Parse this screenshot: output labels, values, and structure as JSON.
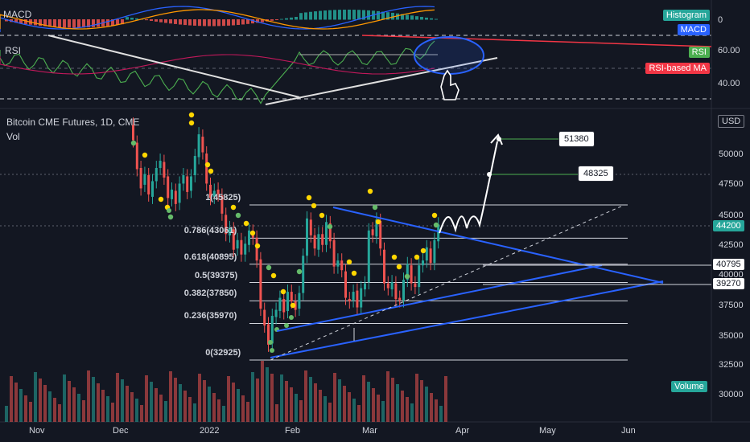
{
  "macd_panel": {
    "title": "MACD",
    "legend": [
      {
        "label": "Histogram",
        "color": "#26a69a"
      },
      {
        "label": "MACD",
        "color": "#2962ff"
      }
    ],
    "axis_ticks": [
      "0"
    ]
  },
  "rsi_panel": {
    "title": "RSI",
    "legend": [
      {
        "label": "RSI",
        "color": "#4caf50"
      },
      {
        "label": "RSI-based MA",
        "color": "#f23645"
      }
    ],
    "axis_ticks": [
      "60.00",
      "40.00"
    ]
  },
  "main_panel": {
    "symbol_line": "Bitcoin CME Futures, 1D, CME",
    "vol_label": "Vol",
    "currency": "USD",
    "volume_label": "Volume",
    "current_price": "44200",
    "price_ticks": [
      "50000",
      "47500",
      "45000",
      "42500",
      "40000",
      "37500",
      "35000",
      "32500",
      "30000"
    ],
    "level_tags": [
      "40795",
      "39270"
    ],
    "targets": [
      "51380",
      "48325"
    ],
    "fib_levels": [
      {
        "label": "1(45825)",
        "value": 45825
      },
      {
        "label": "0.786(43061)",
        "value": 43061
      },
      {
        "label": "0.618(40895)",
        "value": 40895
      },
      {
        "label": "0.5(39375)",
        "value": 39375
      },
      {
        "label": "0.382(37850)",
        "value": 37850
      },
      {
        "label": "0.236(35970)",
        "value": 35970
      },
      {
        "label": "0(32925)",
        "value": 32925
      }
    ]
  },
  "time_axis": [
    "Nov",
    "Dec",
    "2022",
    "Feb",
    "Mar",
    "Apr",
    "May",
    "Jun"
  ],
  "colors": {
    "bg": "#131722",
    "up": "#26a69a",
    "down": "#ef5350",
    "trend": "#2962ff",
    "dot_yellow": "#ffd600",
    "dot_green": "#66bb6a"
  },
  "chart_data": {
    "type": "candlestick",
    "title": "",
    "ylabel": "USD",
    "ylim": [
      29000,
      53500
    ],
    "fib_range": [
      32925,
      45825
    ],
    "targets": [
      51380,
      48325
    ],
    "key_levels": [
      40795,
      39270
    ],
    "last_price": 44200,
    "candles": [
      [
        52500,
        51200
      ],
      [
        51000,
        48800
      ],
      [
        48900,
        47200
      ],
      [
        47500,
        48400
      ],
      [
        48300,
        46700
      ],
      [
        46500,
        47800
      ],
      [
        47800,
        48900
      ],
      [
        48900,
        49500
      ],
      [
        49400,
        48100
      ],
      [
        48200,
        46400
      ],
      [
        46300,
        47100
      ],
      [
        47000,
        45900
      ],
      [
        46000,
        47600
      ],
      [
        47600,
        48300
      ],
      [
        48200,
        46900
      ],
      [
        47000,
        48200
      ],
      [
        48300,
        49900
      ],
      [
        49800,
        51700
      ],
      [
        51500,
        50200
      ],
      [
        50100,
        47600
      ],
      [
        47500,
        46400
      ],
      [
        46500,
        47000
      ],
      [
        47100,
        46700
      ],
      [
        46600,
        45100
      ],
      [
        45000,
        43400
      ],
      [
        43300,
        43900
      ],
      [
        43800,
        42100
      ],
      [
        42200,
        42900
      ],
      [
        42900,
        41700
      ],
      [
        41700,
        42600
      ],
      [
        42500,
        43700
      ],
      [
        43600,
        43100
      ],
      [
        43100,
        41200
      ],
      [
        41300,
        37200
      ],
      [
        37100,
        35800
      ],
      [
        35900,
        34200
      ],
      [
        34300,
        36600
      ],
      [
        36500,
        37100
      ],
      [
        37000,
        38100
      ],
      [
        38000,
        36900
      ],
      [
        37000,
        38600
      ],
      [
        38600,
        37800
      ],
      [
        37800,
        37100
      ],
      [
        37200,
        38500
      ],
      [
        38500,
        41600
      ],
      [
        41600,
        44700
      ],
      [
        44600,
        43300
      ],
      [
        43300,
        42200
      ],
      [
        42100,
        43400
      ],
      [
        43400,
        42500
      ],
      [
        42500,
        44400
      ],
      [
        44300,
        42800
      ],
      [
        42900,
        40700
      ],
      [
        40700,
        41200
      ],
      [
        41200,
        40400
      ],
      [
        40300,
        38100
      ],
      [
        38000,
        37800
      ],
      [
        37900,
        38600
      ],
      [
        38700,
        37300
      ],
      [
        37300,
        38900
      ],
      [
        38800,
        39300
      ],
      [
        39400,
        43700
      ],
      [
        43800,
        43300
      ],
      [
        43200,
        44600
      ],
      [
        44500,
        42200
      ],
      [
        42100,
        39300
      ],
      [
        39300,
        38900
      ],
      [
        38800,
        39400
      ],
      [
        39300,
        38000
      ],
      [
        38100,
        37900
      ],
      [
        37900,
        39600
      ],
      [
        39600,
        40900
      ],
      [
        40800,
        39300
      ],
      [
        39300,
        39000
      ],
      [
        39000,
        40800
      ],
      [
        40800,
        41200
      ],
      [
        41200,
        42300
      ],
      [
        42200,
        41000
      ],
      [
        41000,
        42900
      ],
      [
        42800,
        44200
      ]
    ]
  }
}
